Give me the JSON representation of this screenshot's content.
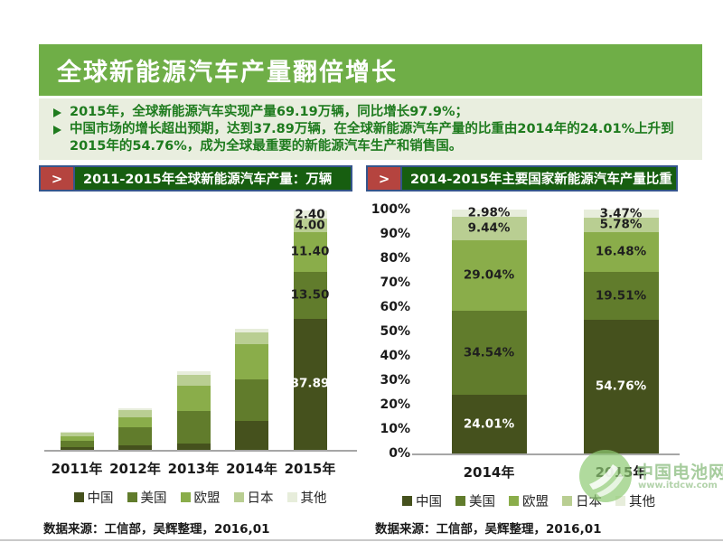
{
  "header": {
    "title": "全球新能源汽车产量翻倍增长"
  },
  "summary": {
    "bullet1": "2015年，全球新能源汽车实现产量69.19万辆，同比增长97.9%；",
    "bullet2": "中国市场的增长超出预期，达到37.89万辆，在全球新能源汽车产量的比重由2014年的24.01%上升到2015年的54.76%，成为全球最重要的新能源汽车生产和销售国。"
  },
  "left_panel": {
    "chevron": ">",
    "title": "2011-2015年全球新能源汽车产量：万辆",
    "source": "数据来源：工信部，吴辉整理，2016,01"
  },
  "right_panel": {
    "chevron": ">",
    "title": "2014-2015年主要国家新能源汽车产量比重",
    "source": "数据来源：工信部，吴辉整理，2016,01"
  },
  "watermark": {
    "name": "中国电池网",
    "url": "www.itdcw.com"
  },
  "colors": {
    "header_bg": "#6FAE47",
    "summary_bg": "#E9EEDF",
    "bullet_green": "#1E7B1E",
    "titlebar_bg": "#175E10",
    "titlebar_border": "#35558C",
    "chevron_bg": "#B5443F",
    "axis_gray": "#A6A6A6"
  },
  "chart_data": [
    {
      "id": "left",
      "type": "bar",
      "stacked": true,
      "title": "2011-2015年全球新能源汽车产量：万辆",
      "unit": "万辆",
      "categories": [
        "2011年",
        "2012年",
        "2013年",
        "2014年",
        "2015年"
      ],
      "series": [
        {
          "name": "中国",
          "color": "#45511D",
          "label_color": "#FFFFFF",
          "values": [
            0.8,
            1.2,
            1.8,
            8.39,
            37.89
          ],
          "labels": [
            null,
            null,
            null,
            null,
            "37.89"
          ]
        },
        {
          "name": "美国",
          "color": "#617C2C",
          "label_color": "#1F1F1F",
          "values": [
            1.9,
            5.2,
            9.3,
            12.08,
            13.5
          ],
          "labels": [
            null,
            null,
            null,
            null,
            "13.50"
          ]
        },
        {
          "name": "欧盟",
          "color": "#8AAD4A",
          "label_color": "#1F1F1F",
          "values": [
            1.2,
            3.1,
            7.4,
            10.15,
            11.4
          ],
          "labels": [
            null,
            null,
            null,
            null,
            "11.40"
          ]
        },
        {
          "name": "日本",
          "color": "#B9CE92",
          "label_color": "#1F1F1F",
          "values": [
            1.0,
            2.0,
            3.2,
            3.3,
            4.0
          ],
          "labels": [
            null,
            null,
            null,
            null,
            "4.00"
          ]
        },
        {
          "name": "其他",
          "color": "#E7EDDB",
          "label_color": "#1F1F1F",
          "values": [
            0.4,
            0.5,
            1.0,
            1.04,
            2.4
          ],
          "labels": [
            null,
            null,
            null,
            null,
            "2.40"
          ]
        }
      ],
      "total_2015": 69.19,
      "ylim": [
        0,
        71
      ],
      "grid": false,
      "y_axis_visible": false,
      "legend_position": "bottom"
    },
    {
      "id": "right",
      "type": "bar",
      "stacked": true,
      "percent": true,
      "title": "2014-2015年主要国家新能源汽车产量比重",
      "categories": [
        "2014年",
        "2015年"
      ],
      "series": [
        {
          "name": "中国",
          "color": "#45511D",
          "label_color": "#FFFFFF",
          "values": [
            24.01,
            54.76
          ],
          "labels": [
            "24.01%",
            "54.76%"
          ]
        },
        {
          "name": "美国",
          "color": "#617C2C",
          "label_color": "#1F1F1F",
          "values": [
            34.54,
            19.51
          ],
          "labels": [
            "34.54%",
            "19.51%"
          ]
        },
        {
          "name": "欧盟",
          "color": "#8AAD4A",
          "label_color": "#1F1F1F",
          "values": [
            29.04,
            16.48
          ],
          "labels": [
            "29.04%",
            "16.48%"
          ]
        },
        {
          "name": "日本",
          "color": "#B9CE92",
          "label_color": "#1F1F1F",
          "values": [
            9.44,
            5.78
          ],
          "labels": [
            "9.44%",
            "5.78%"
          ]
        },
        {
          "name": "其他",
          "color": "#E7EDDB",
          "label_color": "#1F1F1F",
          "values": [
            2.98,
            3.47
          ],
          "labels": [
            "2.98%",
            "3.47%"
          ]
        }
      ],
      "ylim": [
        0,
        100
      ],
      "y_ticks": [
        "0%",
        "10%",
        "20%",
        "30%",
        "40%",
        "50%",
        "60%",
        "70%",
        "80%",
        "90%",
        "100%"
      ],
      "grid": false,
      "legend_position": "bottom"
    }
  ]
}
